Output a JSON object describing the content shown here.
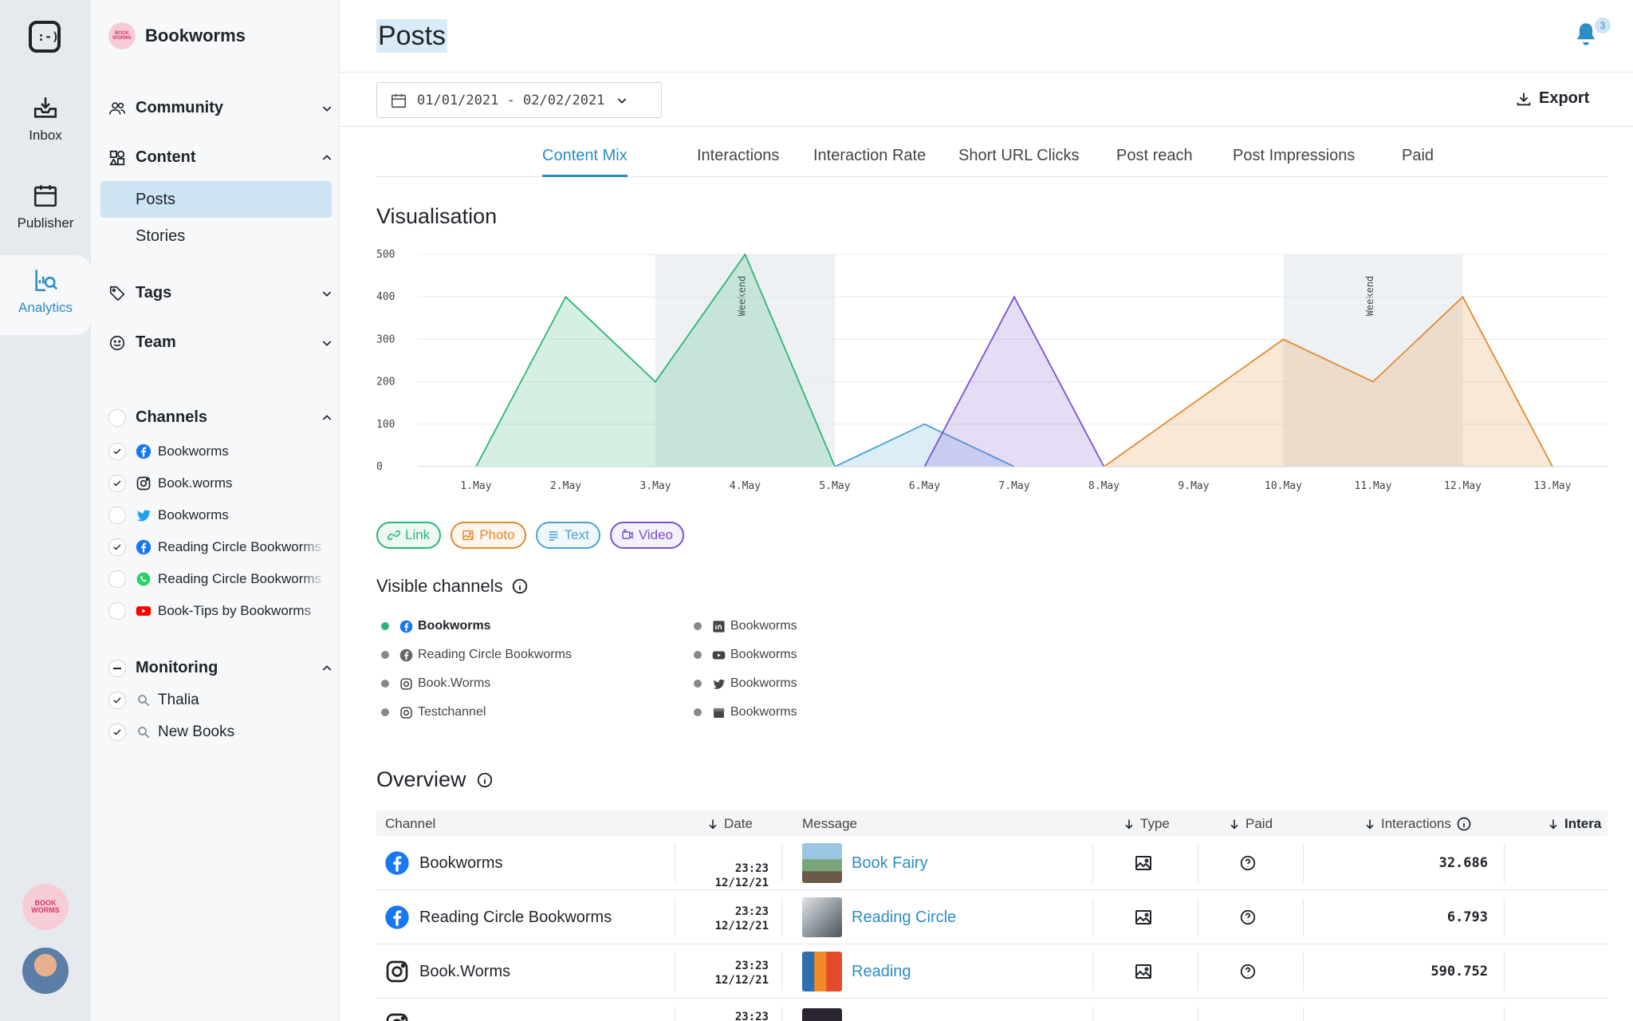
{
  "rail": {
    "inbox_label": "Inbox",
    "publisher_label": "Publisher",
    "analytics_label": "Analytics",
    "brand_avatar_text": "BOOK WORMS"
  },
  "sidebar": {
    "workspace_name": "Bookworms",
    "sections": {
      "community": "Community",
      "content": "Content",
      "tags": "Tags",
      "team": "Team",
      "channels": "Channels",
      "monitoring": "Monitoring"
    },
    "content_items": [
      "Posts",
      "Stories"
    ],
    "channels": [
      {
        "label": "Bookworms",
        "icon": "facebook-icon",
        "checked": true
      },
      {
        "label": "Book.worms",
        "icon": "instagram-icon",
        "checked": true
      },
      {
        "label": "Bookworms",
        "icon": "twitter-icon",
        "checked": false
      },
      {
        "label": "Reading Circle Bookworms",
        "icon": "facebook-icon",
        "checked": true
      },
      {
        "label": "Reading Circle Bookworms",
        "icon": "whatsapp-icon",
        "checked": false
      },
      {
        "label": "Book-Tips by Bookworms",
        "icon": "youtube-icon",
        "checked": false
      }
    ],
    "monitoring": [
      {
        "label": "Thalia",
        "checked": true
      },
      {
        "label": "New Books",
        "checked": true
      }
    ]
  },
  "header": {
    "title": "Posts",
    "notification_count": "3",
    "date_range": "01/01/2021 - 02/02/2021",
    "export_label": "Export"
  },
  "tabs": [
    "Content Mix",
    "Interactions",
    "Interaction Rate",
    "Short URL Clicks",
    "Post reach",
    "Post Impressions",
    "Paid"
  ],
  "visualisation_title": "Visualisation",
  "legend_pills": [
    {
      "label": "Link",
      "color": "#2bb673"
    },
    {
      "label": "Photo",
      "color": "#e28a2f"
    },
    {
      "label": "Text",
      "color": "#4aa3d8"
    },
    {
      "label": "Video",
      "color": "#7b4fd1"
    }
  ],
  "chart_data": {
    "type": "area",
    "x": [
      "1.May",
      "2.May",
      "3.May",
      "4.May",
      "5.May",
      "6.May",
      "7.May",
      "8.May",
      "9.May",
      "10.May",
      "11.May",
      "12.May",
      "13.May"
    ],
    "ylim": [
      0,
      500
    ],
    "yticks": [
      0,
      100,
      200,
      300,
      400,
      500
    ],
    "grid": true,
    "shaded_bands": [
      {
        "from": "3.May",
        "to": "5.May",
        "label": "Weekend"
      },
      {
        "from": "10.May",
        "to": "12.May",
        "label": "Weekend"
      }
    ],
    "series": [
      {
        "name": "Link",
        "color": "#2bb673",
        "values": [
          0,
          400,
          200,
          500,
          0,
          null,
          null,
          null,
          null,
          null,
          null,
          null,
          null
        ]
      },
      {
        "name": "Text",
        "color": "#4aa3d8",
        "values": [
          null,
          null,
          null,
          null,
          0,
          100,
          0,
          null,
          null,
          null,
          null,
          null,
          null
        ]
      },
      {
        "name": "Video",
        "color": "#7b4fd1",
        "values": [
          null,
          null,
          null,
          null,
          null,
          0,
          400,
          0,
          null,
          null,
          null,
          null,
          null
        ]
      },
      {
        "name": "Photo",
        "color": "#e28a2f",
        "values": [
          null,
          null,
          null,
          null,
          null,
          null,
          null,
          0,
          150,
          300,
          200,
          400,
          0
        ]
      }
    ]
  },
  "visible_channels": {
    "title": "Visible channels",
    "col1": [
      {
        "label": "Bookworms",
        "icon": "facebook-icon",
        "active": true
      },
      {
        "label": "Reading Circle Bookworms",
        "icon": "facebook-icon",
        "active": false
      },
      {
        "label": "Book.Worms",
        "icon": "instagram-icon",
        "active": false
      },
      {
        "label": "Testchannel",
        "icon": "instagram-icon",
        "active": false
      }
    ],
    "col2": [
      {
        "label": "Bookworms",
        "icon": "linkedin-icon",
        "active": false
      },
      {
        "label": "Bookworms",
        "icon": "youtube-icon",
        "active": false
      },
      {
        "label": "Bookworms",
        "icon": "twitter-icon",
        "active": false
      },
      {
        "label": "Bookworms",
        "icon": "google-my-business-icon",
        "active": false
      }
    ]
  },
  "overview": {
    "title": "Overview",
    "columns": {
      "channel": "Channel",
      "date": "Date",
      "message": "Message",
      "type": "Type",
      "paid": "Paid",
      "interactions": "Interactions",
      "interaction_rate": "Intera"
    },
    "rows": [
      {
        "channel": "Bookworms",
        "channel_icon": "facebook-icon",
        "time": "23:23",
        "date": "12/12/21",
        "message": "Book Fairy",
        "interactions": "32.686"
      },
      {
        "channel": "Reading Circle Bookworms",
        "channel_icon": "facebook-icon",
        "time": "23:23",
        "date": "12/12/21",
        "message": "Reading Circle",
        "interactions": "6.793"
      },
      {
        "channel": "Book.Worms",
        "channel_icon": "instagram-icon",
        "time": "23:23",
        "date": "12/12/21",
        "message": "Reading",
        "interactions": "590.752"
      },
      {
        "channel": "",
        "channel_icon": "instagram-icon",
        "time": "23:23",
        "date": "",
        "message": "",
        "interactions": ""
      }
    ]
  }
}
